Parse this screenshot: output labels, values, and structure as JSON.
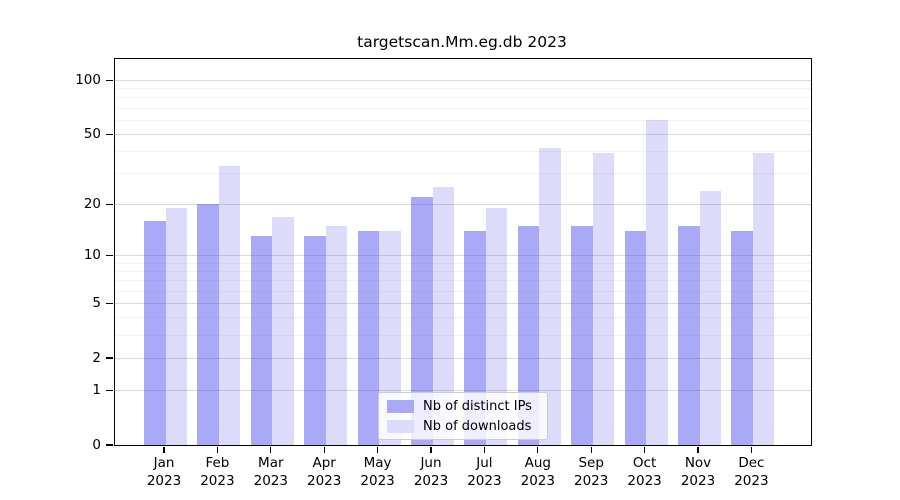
{
  "chart_data": {
    "type": "bar",
    "title": "targetscan.Mm.eg.db 2023",
    "x_tick_months": [
      "Jan",
      "Feb",
      "Mar",
      "Apr",
      "May",
      "Jun",
      "Jul",
      "Aug",
      "Sep",
      "Oct",
      "Nov",
      "Dec"
    ],
    "x_tick_year": "2023",
    "series": [
      {
        "name": "Nb of distinct IPs",
        "color": "#a9a9f7",
        "values": [
          16,
          20,
          13,
          13,
          14,
          22,
          14,
          15,
          15,
          14,
          15,
          14
        ]
      },
      {
        "name": "Nb of downloads",
        "color": "#dcdcfa",
        "values": [
          19,
          33,
          17,
          15,
          14,
          25,
          19,
          42,
          39,
          60,
          24,
          39
        ]
      }
    ],
    "y_axis": {
      "scale": "log10(1+x)",
      "major_ticks": [
        0,
        1,
        2,
        5,
        10,
        20,
        50,
        100
      ],
      "minor_gridlines": [
        3,
        4,
        6,
        7,
        8,
        9,
        30,
        40,
        60,
        70,
        80,
        90
      ],
      "range": [
        0,
        131
      ]
    },
    "legend_position": "bottom-center-inside",
    "grid": true,
    "background": "#ffffff"
  }
}
